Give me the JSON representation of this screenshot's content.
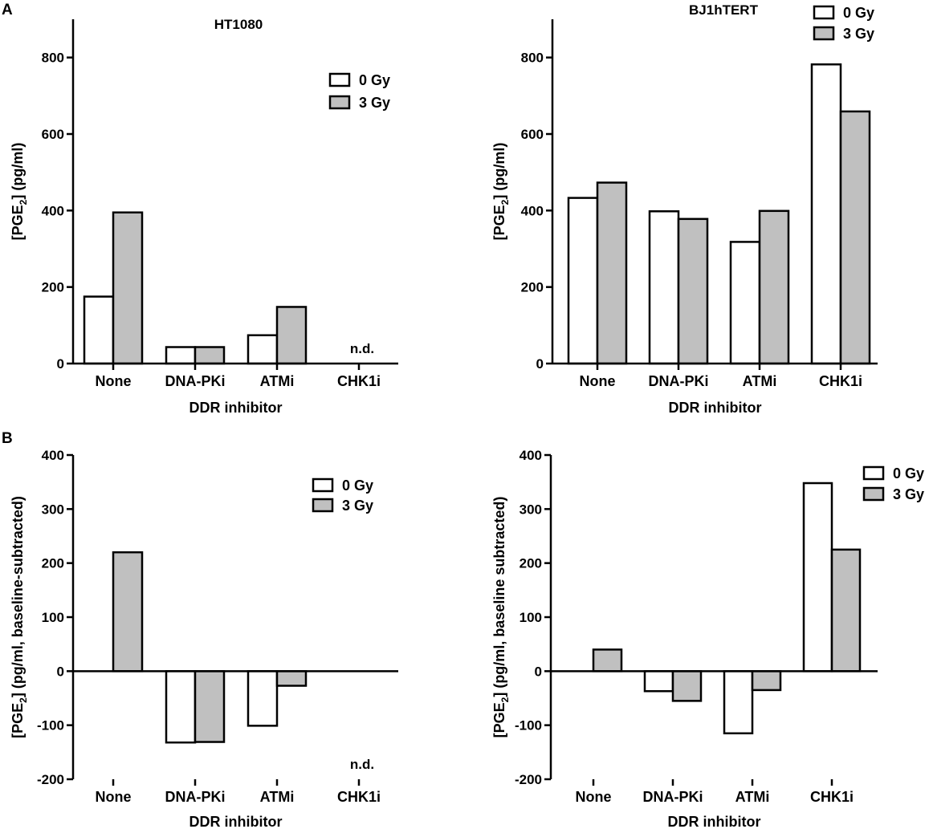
{
  "panel_letters": [
    "A",
    "B"
  ],
  "colors": {
    "bar_0gy": "#ffffff",
    "bar_3gy": "#c0c0c0",
    "stroke": "#000000"
  },
  "chart_data": [
    {
      "type": "bar",
      "title": "HT1080",
      "xlabel": "DDR inhibitor",
      "ylabel_prefix": "[PGE",
      "ylabel_sub": "2",
      "ylabel_suffix": "] (pg/ml)",
      "ylim": [
        0,
        900
      ],
      "yticks": [
        0,
        200,
        400,
        600,
        800
      ],
      "categories": [
        "None",
        "DNA-PKi",
        "ATMi",
        "CHK1i"
      ],
      "series": [
        {
          "name": "0 Gy",
          "values": [
            175,
            43,
            74,
            null
          ]
        },
        {
          "name": "3 Gy",
          "values": [
            395,
            43,
            148,
            null
          ]
        }
      ],
      "annotations": [
        {
          "text": "n.d.",
          "category": "CHK1i"
        }
      ]
    },
    {
      "type": "bar",
      "title": "BJ1hTERT",
      "xlabel": "DDR inhibitor",
      "ylabel_prefix": "[PGE",
      "ylabel_sub": "2",
      "ylabel_suffix": "] (pg/ml)",
      "ylim": [
        0,
        900
      ],
      "yticks": [
        0,
        200,
        400,
        600,
        800
      ],
      "categories": [
        "None",
        "DNA-PKi",
        "ATMi",
        "CHK1i"
      ],
      "series": [
        {
          "name": "0 Gy",
          "values": [
            433,
            398,
            318,
            782
          ]
        },
        {
          "name": "3 Gy",
          "values": [
            473,
            378,
            399,
            659
          ]
        }
      ],
      "annotations": []
    },
    {
      "type": "bar",
      "title": "",
      "xlabel": "DDR inhibitor",
      "ylabel_prefix": "[PGE",
      "ylabel_sub": "2",
      "ylabel_suffix": "] (pg/ml, baseline-subtracted)",
      "ylim": [
        -200,
        400
      ],
      "yticks": [
        -200,
        -100,
        0,
        100,
        200,
        300,
        400
      ],
      "categories": [
        "None",
        "DNA-PKi",
        "ATMi",
        "CHK1i"
      ],
      "series": [
        {
          "name": "0 Gy",
          "values": [
            null,
            -132,
            -101,
            null
          ]
        },
        {
          "name": "3 Gy",
          "values": [
            220,
            -131,
            -27,
            null
          ]
        }
      ],
      "annotations": [
        {
          "text": "n.d.",
          "category": "CHK1i"
        }
      ]
    },
    {
      "type": "bar",
      "title": "",
      "xlabel": "DDR inhibitor",
      "ylabel_prefix": "[PGE",
      "ylabel_sub": "2",
      "ylabel_suffix": "] (pg/ml, baseline subtracted)",
      "ylim": [
        -200,
        400
      ],
      "yticks": [
        -200,
        -100,
        0,
        100,
        200,
        300,
        400
      ],
      "categories": [
        "None",
        "DNA-PKi",
        "ATMi",
        "CHK1i"
      ],
      "series": [
        {
          "name": "0 Gy",
          "values": [
            null,
            -37,
            -115,
            348
          ]
        },
        {
          "name": "3 Gy",
          "values": [
            40,
            -55,
            -35,
            225
          ]
        }
      ],
      "annotations": []
    }
  ]
}
